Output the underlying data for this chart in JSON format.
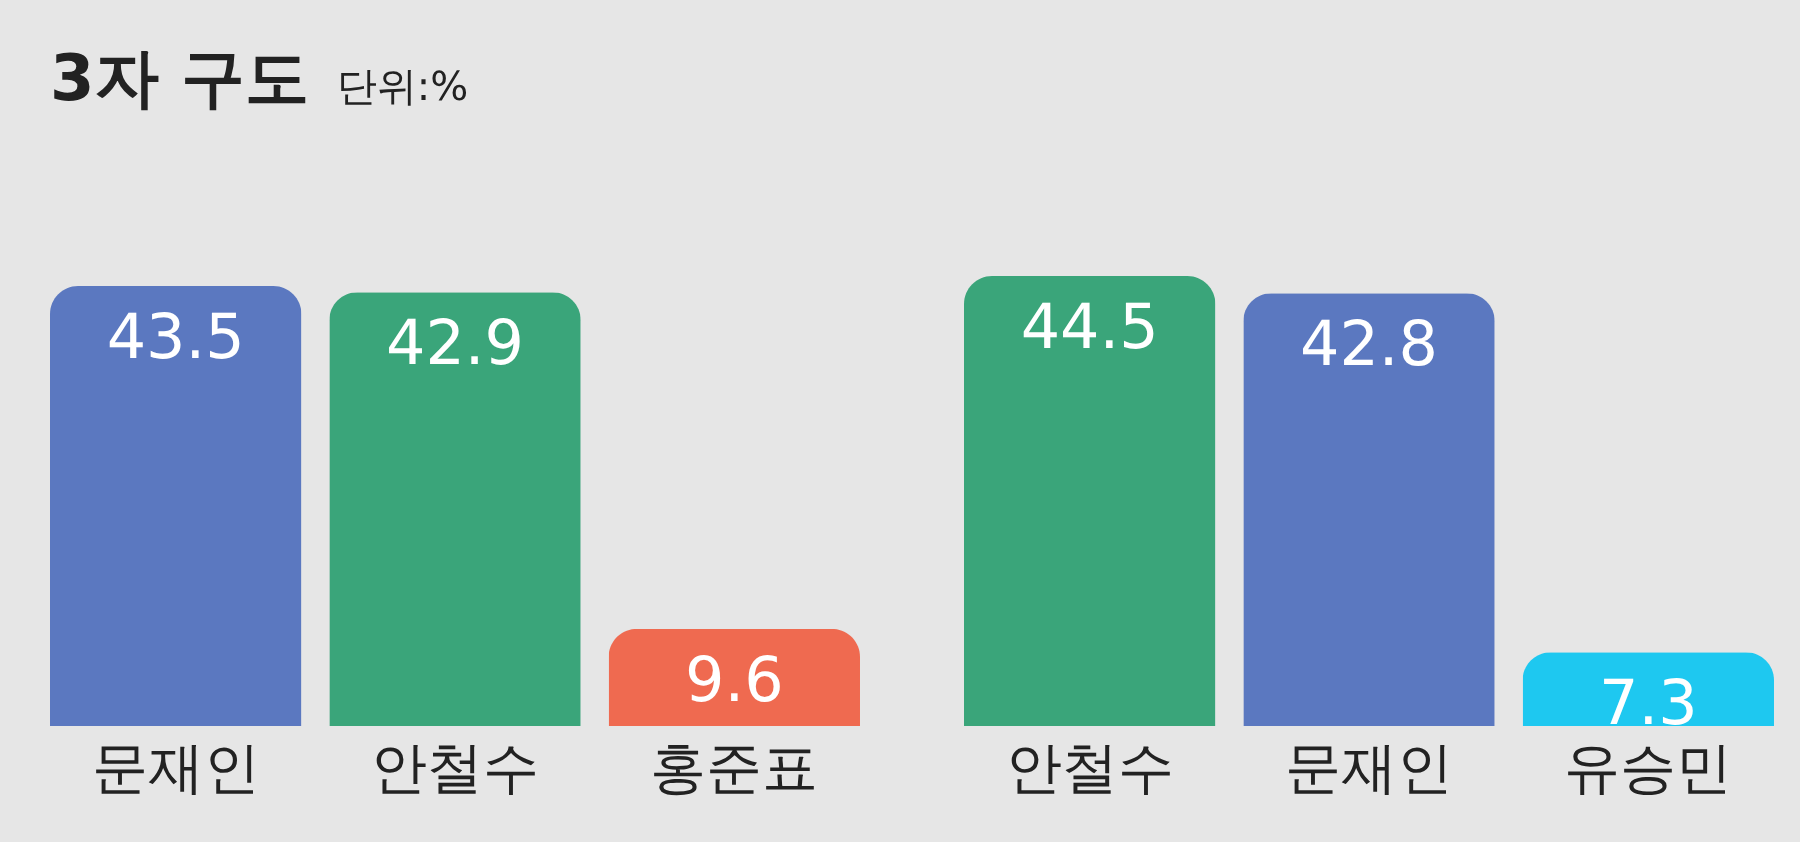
{
  "chart_data": [
    {
      "type": "bar",
      "title": "3자 구도",
      "subtitle": "단위:%",
      "categories": [
        "문재인",
        "안철수",
        "홍준표"
      ],
      "values": [
        43.5,
        42.9,
        9.6
      ],
      "colors": [
        "#5b78c0",
        "#3aa57a",
        "#ef6a50"
      ],
      "data_labels": true
    },
    {
      "type": "bar",
      "categories": [
        "안철수",
        "문재인",
        "유승민"
      ],
      "values": [
        44.5,
        42.8,
        7.3
      ],
      "colors": [
        "#3aa57a",
        "#5b78c0",
        "#1ec8f0"
      ],
      "data_labels": true
    }
  ]
}
